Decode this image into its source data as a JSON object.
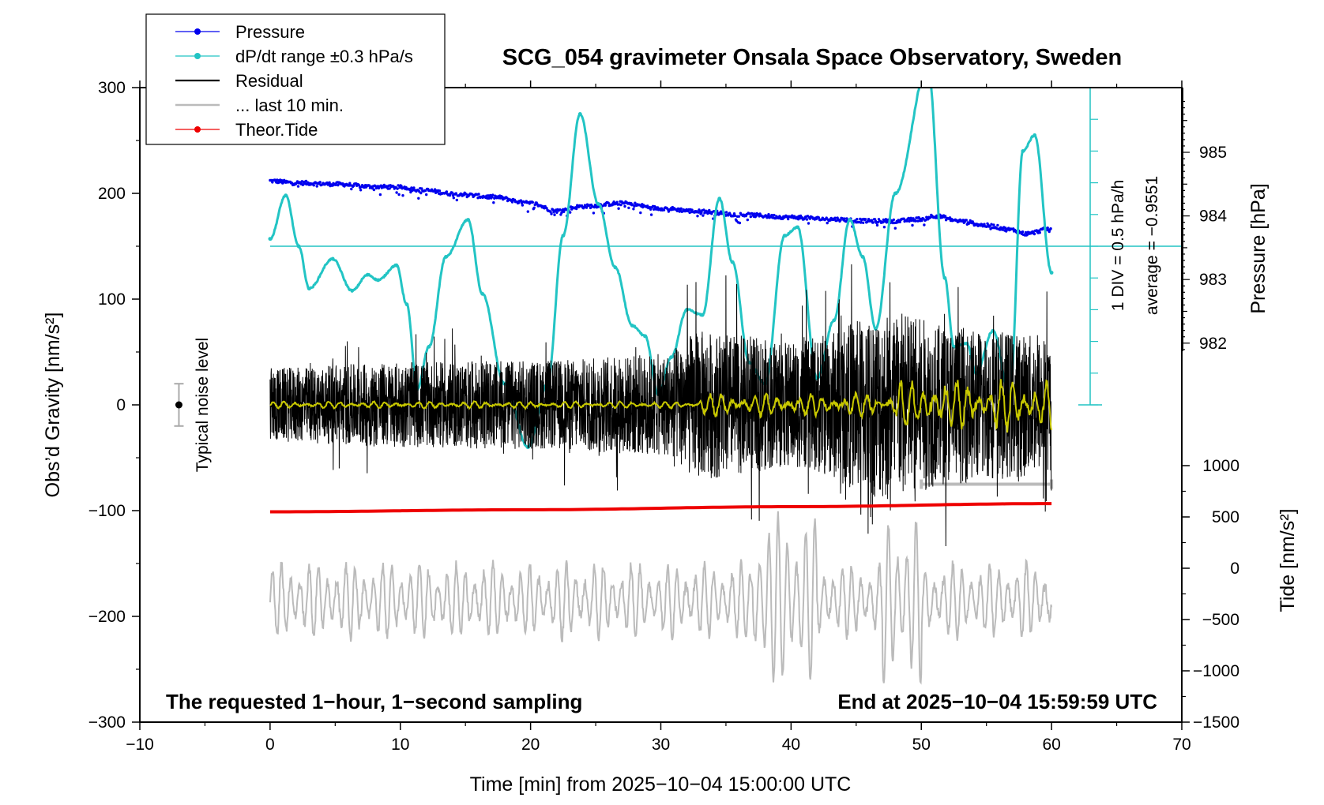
{
  "colors": {
    "pressure": "#0000ee",
    "dpdt": "#22c4c4",
    "residual": "#000000",
    "last10": "#bbbbbb",
    "tide": "#ee0000",
    "filtered": "#c8c800"
  },
  "chart_data": {
    "type": "line",
    "title": "SCG_054 gravimeter Onsala Space Observatory, Sweden",
    "xlabel": "Time [min] from 2025−10−04 15:00:00 UTC",
    "ylabel_left": "Obs’d Gravity [nm/s²]",
    "ylabel_right_pressure": "Pressure [hPa]",
    "ylabel_right_tide": "Tide [nm/s²]",
    "xlim": [
      -10,
      70
    ],
    "ylim": [
      -300,
      300
    ],
    "pressure_axis": [
      981,
      986
    ],
    "tide_axis": [
      -1500,
      1000
    ],
    "x_ticks": [
      "−10",
      "0",
      "10",
      "20",
      "30",
      "40",
      "50",
      "60",
      "70"
    ],
    "y_ticks": [
      "−300",
      "−200",
      "−100",
      "0",
      "100",
      "200",
      "300"
    ],
    "pressure_ticks": [
      "982",
      "983",
      "984",
      "985"
    ],
    "tide_ticks": [
      "−1500",
      "−1000",
      "−500",
      "0",
      "500",
      "1000"
    ],
    "legend": [
      {
        "label": "Pressure",
        "key": "pressure",
        "marker": true
      },
      {
        "label": "dP/dt range ±0.3 hPa/s",
        "key": "dpdt",
        "marker": true
      },
      {
        "label": "Residual",
        "key": "residual",
        "marker": false
      },
      {
        "label": "... last 10 min.",
        "key": "last10",
        "marker": false
      },
      {
        "label": "Theor.Tide",
        "key": "tide",
        "marker": true
      }
    ],
    "noise_label": "Typical noise level",
    "div_label": "1 DIV = 0.5 hPa/h",
    "average_label": "average = −0.9551",
    "footer_left": "The requested 1−hour, 1−second sampling",
    "footer_right": "End at 2025−10−04 15:59:59 UTC",
    "series": [
      {
        "name": "Pressure",
        "axis": "pressure",
        "x": [
          0,
          2,
          5,
          8,
          10,
          12,
          14,
          17,
          20,
          22,
          24,
          27,
          30,
          33,
          36,
          40,
          43,
          46,
          48,
          50,
          51,
          53,
          55,
          57,
          58,
          60
        ],
        "values": [
          984.55,
          984.52,
          984.5,
          984.46,
          984.45,
          984.4,
          984.35,
          984.3,
          984.2,
          984.08,
          984.15,
          984.2,
          984.12,
          984.07,
          984.02,
          983.98,
          983.95,
          983.92,
          983.92,
          983.95,
          984.0,
          983.92,
          983.85,
          983.78,
          983.72,
          983.8
        ]
      },
      {
        "name": "dP/dt",
        "axis": "left",
        "x": [
          0,
          1.2,
          2.2,
          3,
          4.8,
          6.3,
          7.5,
          8.3,
          9.7,
          10.5,
          11.3,
          12.2,
          13.5,
          15.2,
          16.3,
          18,
          19.8,
          21.3,
          22.5,
          23.8,
          25.2,
          26.5,
          27.8,
          28.8,
          29.8,
          30.8,
          32,
          33.2,
          34.5,
          35.5,
          36.8,
          38,
          39.5,
          40.5,
          42,
          43.3,
          44.5,
          45.5,
          46.5,
          48,
          50.5,
          51.8,
          52.5,
          53.5,
          54.2,
          55.5,
          56.8,
          57.8,
          58.7,
          60
        ],
        "values": [
          157,
          198,
          150,
          110,
          138,
          108,
          123,
          118,
          132,
          95,
          15,
          55,
          140,
          175,
          105,
          20,
          -40,
          20,
          160,
          275,
          190,
          130,
          75,
          65,
          10,
          45,
          90,
          85,
          195,
          135,
          40,
          20,
          160,
          168,
          25,
          80,
          175,
          140,
          72,
          200,
          320,
          120,
          55,
          58,
          30,
          70,
          10,
          240,
          255,
          125
        ]
      },
      {
        "name": "Theor.Tide",
        "axis": "tide",
        "x": [
          0,
          20,
          40,
          60
        ],
        "values": [
          550,
          570,
          600,
          630
        ]
      }
    ],
    "residual_envelope": {
      "x": [
        0,
        10,
        20,
        30,
        33,
        40,
        48,
        52,
        56,
        60
      ],
      "amplitude": [
        35,
        40,
        42,
        48,
        70,
        60,
        90,
        75,
        70,
        65
      ]
    },
    "last10_bar": {
      "x": [
        50,
        60
      ],
      "y": -75
    },
    "noise_level": {
      "x": -7,
      "center": 0,
      "half_range": 20
    }
  }
}
